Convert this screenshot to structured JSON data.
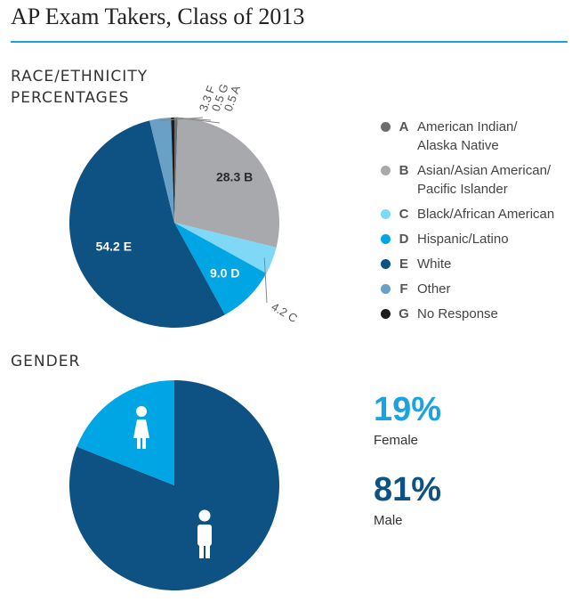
{
  "title": "AP Exam Takers, Class of 2013",
  "race_section_label": "RACE/ETHNICITY PERCENTAGES",
  "gender_section_label": "GENDER",
  "colors": {
    "A": "#6b6e71",
    "B": "#a7a9ac",
    "C": "#7fd8f6",
    "D": "#00a6e4",
    "E": "#0d5282",
    "F": "#6aa0c5",
    "G": "#1c1c1c",
    "rule": "#1aa3e0"
  },
  "legend": [
    {
      "letter": "A",
      "label": "American Indian/\nAlaska Native"
    },
    {
      "letter": "B",
      "label": "Asian/Asian American/\nPacific Islander"
    },
    {
      "letter": "C",
      "label": "Black/African American"
    },
    {
      "letter": "D",
      "label": "Hispanic/Latino"
    },
    {
      "letter": "E",
      "label": "White"
    },
    {
      "letter": "F",
      "label": "Other"
    },
    {
      "letter": "G",
      "label": "No Response"
    }
  ],
  "chart_data": [
    {
      "type": "pie",
      "title": "RACE/ETHNICITY PERCENTAGES",
      "slices": [
        {
          "letter": "A",
          "value": 0.5,
          "label": "0.5 A"
        },
        {
          "letter": "B",
          "value": 28.3,
          "label": "28.3 B"
        },
        {
          "letter": "C",
          "value": 4.2,
          "label": "4.2 C"
        },
        {
          "letter": "D",
          "value": 9.0,
          "label": "9.0 D"
        },
        {
          "letter": "E",
          "value": 54.2,
          "label": "54.2 E"
        },
        {
          "letter": "F",
          "value": 3.3,
          "label": "3.3 F"
        },
        {
          "letter": "G",
          "value": 0.5,
          "label": "0.5 G"
        }
      ]
    },
    {
      "type": "pie",
      "title": "GENDER",
      "slices": [
        {
          "name": "Male",
          "value": 81,
          "label": "81%",
          "color": "#0d5282"
        },
        {
          "name": "Female",
          "value": 19,
          "label": "19%",
          "color": "#00a6e4"
        }
      ]
    }
  ]
}
